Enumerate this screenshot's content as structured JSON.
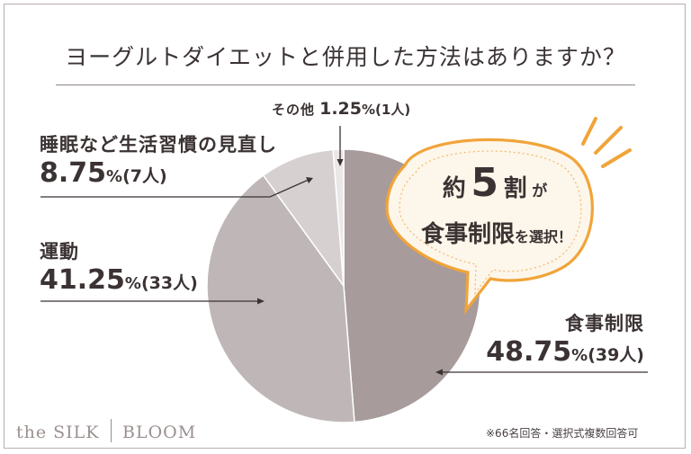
{
  "title": "ヨーグルトダイエットと併用した方法はありますか？",
  "chart_data": {
    "type": "pie",
    "slices": [
      {
        "label": "食事制限",
        "percent": 48.75,
        "count_text": "(39人)",
        "color": "#a79b9b"
      },
      {
        "label": "運動",
        "percent": 41.25,
        "count_text": "(33人)",
        "color": "#bfb7b7"
      },
      {
        "label": "睡眠など生活習慣の見直し",
        "percent": 8.75,
        "count_text": "(7人)",
        "color": "#d7d0d0"
      },
      {
        "label": "その他",
        "percent": 1.25,
        "count_text": "(1人)",
        "color": "#ebe7e7"
      }
    ],
    "start": "top",
    "direction": "clockwise"
  },
  "labels": {
    "shokuji": {
      "cat": "食事制限",
      "val": "48.75",
      "pct": "%",
      "cnt": "(39人)"
    },
    "undo": {
      "cat": "運動",
      "val": "41.25",
      "pct": "%",
      "cnt": "(33人)"
    },
    "suimin": {
      "cat": "睡眠など生活習慣の見直し",
      "val": "8.75",
      "pct": "%",
      "cnt": "(7人)"
    },
    "sonota": {
      "cat": "その他",
      "val": "1.25",
      "pct": "%",
      "cnt": "(1人)"
    }
  },
  "callout": {
    "line1_pre": "約",
    "line1_num": "5",
    "line1_mid": "割",
    "line1_post": "が",
    "line2_main": "食事制限",
    "line2_post": "を選択！",
    "accent": "#f0a43a",
    "fill": "#fdf6ea"
  },
  "brand": {
    "left": "the SILK",
    "right": "BLOOM"
  },
  "footnote": "※66名回答・選択式複数回答可"
}
